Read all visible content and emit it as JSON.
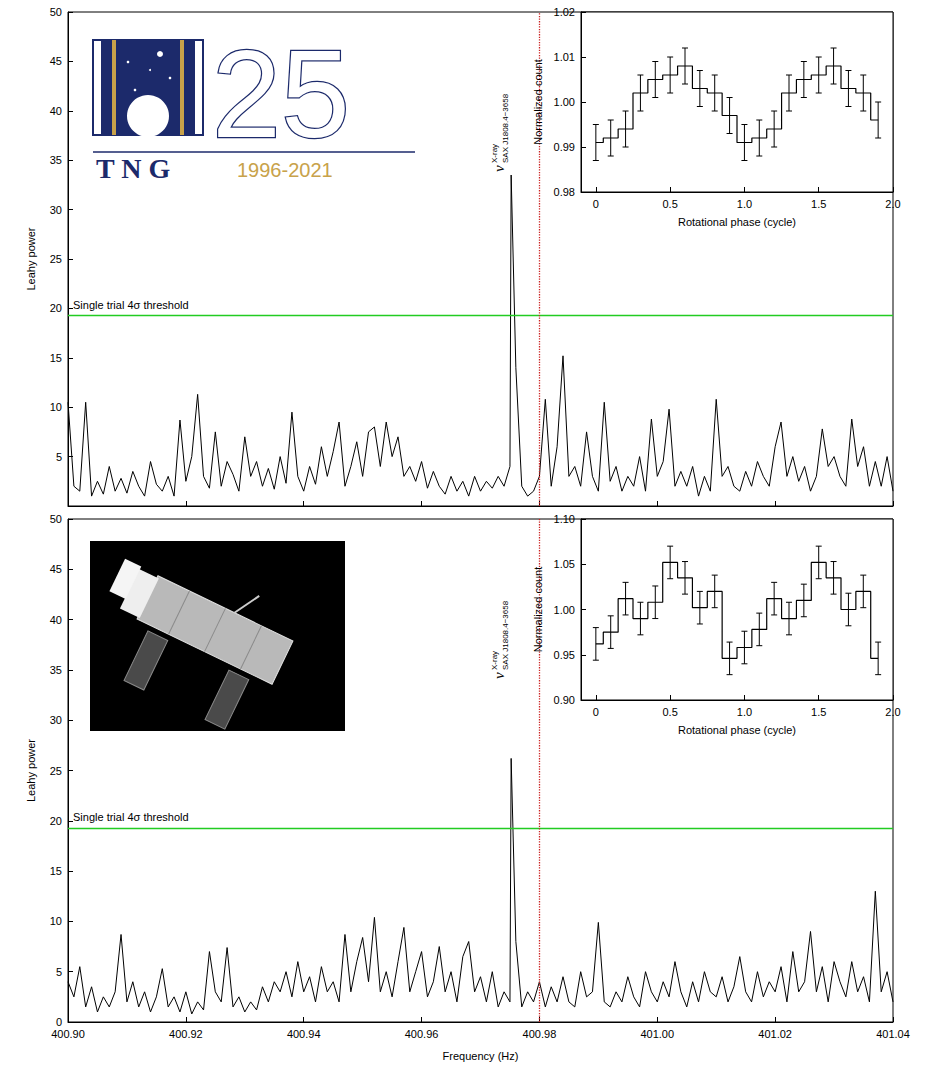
{
  "chart_data": [
    {
      "type": "line",
      "color": "#000000",
      "line_style": "solid",
      "grid": false,
      "tick_labels": "y",
      "y_label": "Leahy power",
      "xlim": [
        400.9,
        401.04
      ],
      "xticks": [
        {
          "value": 400.9,
          "label": "400.90"
        },
        400.92,
        400.94,
        400.96,
        400.98,
        {
          "value": 401,
          "label": "401.00"
        },
        401.02,
        401.04
      ],
      "ylim": [
        0,
        50
      ],
      "yticks": [
        5,
        10,
        15,
        20,
        25,
        30,
        35,
        40,
        45,
        50
      ],
      "x": [
        400.9,
        400.901,
        400.902,
        400.903,
        400.904,
        400.905,
        400.906,
        400.907,
        400.908,
        400.909,
        400.91,
        400.911,
        400.912,
        400.913,
        400.914,
        400.915,
        400.916,
        400.917,
        400.918,
        400.919,
        400.92,
        400.921,
        400.922,
        400.923,
        400.924,
        400.925,
        400.926,
        400.927,
        400.928,
        400.929,
        400.93,
        400.931,
        400.932,
        400.933,
        400.934,
        400.935,
        400.936,
        400.937,
        400.938,
        400.939,
        400.94,
        400.941,
        400.942,
        400.943,
        400.944,
        400.945,
        400.946,
        400.947,
        400.948,
        400.949,
        400.95,
        400.951,
        400.952,
        400.953,
        400.954,
        400.955,
        400.956,
        400.957,
        400.958,
        400.959,
        400.96,
        400.961,
        400.962,
        400.963,
        400.964,
        400.965,
        400.966,
        400.967,
        400.968,
        400.969,
        400.97,
        400.971,
        400.972,
        400.973,
        400.974,
        400.975,
        400.9752,
        400.976,
        400.977,
        400.978,
        400.979,
        400.98,
        400.981,
        400.982,
        400.983,
        400.984,
        400.985,
        400.986,
        400.987,
        400.988,
        400.989,
        400.99,
        400.991,
        400.992,
        400.993,
        400.994,
        400.995,
        400.996,
        400.997,
        400.998,
        400.999,
        401,
        401.001,
        401.002,
        401.003,
        401.004,
        401.005,
        401.006,
        401.007,
        401.008,
        401.009,
        401.01,
        401.011,
        401.012,
        401.013,
        401.014,
        401.015,
        401.016,
        401.017,
        401.018,
        401.019,
        401.02,
        401.021,
        401.022,
        401.023,
        401.024,
        401.025,
        401.026,
        401.027,
        401.028,
        401.029,
        401.03,
        401.031,
        401.032,
        401.033,
        401.034,
        401.035,
        401.036,
        401.037,
        401.038,
        401.039,
        401.04
      ],
      "values": [
        10.5,
        2,
        1.5,
        10.5,
        1,
        2.5,
        1.2,
        4,
        1.5,
        2.8,
        1.3,
        3.5,
        2,
        1,
        4.5,
        2.2,
        1.5,
        3,
        1,
        8.7,
        2.5,
        5,
        11.3,
        3,
        1.8,
        7.5,
        2,
        4.5,
        3.2,
        1.5,
        7,
        3,
        4.5,
        2,
        3.8,
        1.7,
        5,
        2.3,
        9.5,
        3,
        1.5,
        4,
        2.2,
        6,
        3,
        5.5,
        8.5,
        2,
        4,
        6.5,
        3,
        7.5,
        8,
        4,
        8.5,
        5,
        7,
        3,
        4,
        2.5,
        4.5,
        1.8,
        3.5,
        2,
        1.2,
        3,
        1.5,
        2.5,
        1,
        3,
        1.5,
        2.5,
        1.8,
        3,
        2,
        4,
        33.5,
        14,
        2,
        1,
        1.5,
        3,
        10.8,
        2,
        6,
        15.2,
        3,
        4,
        2,
        7.5,
        3,
        1.5,
        10.5,
        2.5,
        4,
        1.5,
        3,
        2,
        5,
        1.5,
        8.8,
        3,
        4.5,
        9.8,
        2,
        3.5,
        2,
        4,
        1,
        3,
        1.5,
        10.8,
        3,
        4,
        2,
        1.5,
        3.5,
        2,
        4.5,
        3,
        2,
        6,
        8.5,
        3,
        5,
        2.5,
        4,
        1.5,
        3,
        7.8,
        4,
        5,
        3,
        2,
        8.8,
        4,
        6,
        2,
        4.5,
        2,
        5,
        1.5
      ],
      "threshold": {
        "value": 19.3,
        "label": "Single trial 4σ threshold",
        "color": "#22cc22"
      },
      "vertical_line": {
        "value": 400.9752,
        "color": "#cc2222",
        "symbol": "ν",
        "superscript": "X-ray",
        "subscript": "SAX J1808.4−3658"
      },
      "logo": {
        "number": "25",
        "letters": "T N G",
        "years": "1996-2021"
      },
      "inset": {
        "type": "line",
        "line_style": "steps",
        "color": "#000000",
        "grid": false,
        "x_label": "Rotational phase (cycle)",
        "y_label": "Normalized count",
        "xlim": [
          -0.1,
          2.0
        ],
        "xticks": [
          0,
          0.5,
          {
            "value": 1,
            "label": "1.0"
          },
          1.5,
          {
            "value": 2,
            "label": "2.0"
          }
        ],
        "ylim": [
          0.98,
          1.02
        ],
        "yticks": [
          0.98,
          0.99,
          {
            "value": 1,
            "label": "1.00"
          },
          1.01,
          1.02
        ],
        "x": [
          0,
          0.1,
          0.2,
          0.3,
          0.4,
          0.5,
          0.6,
          0.7,
          0.8,
          0.9,
          1,
          1.1,
          1.2,
          1.3,
          1.4,
          1.5,
          1.6,
          1.7,
          1.8,
          1.9
        ],
        "values": [
          0.991,
          0.992,
          0.994,
          1.002,
          1.005,
          1.006,
          1.008,
          1.003,
          1.002,
          0.997,
          0.991,
          0.992,
          0.994,
          1.002,
          1.005,
          1.006,
          1.008,
          1.003,
          1.002,
          0.996
        ],
        "errors": [
          0.004,
          0.004,
          0.004,
          0.004,
          0.004,
          0.004,
          0.004,
          0.004,
          0.004,
          0.004,
          0.004,
          0.004,
          0.004,
          0.004,
          0.004,
          0.004,
          0.004,
          0.004,
          0.004,
          0.004
        ]
      }
    },
    {
      "type": "line",
      "color": "#000000",
      "line_style": "solid",
      "grid": false,
      "x_label": "Frequency (Hz)",
      "y_label": "Leahy power",
      "xlim": [
        400.9,
        401.04
      ],
      "xticks": [
        {
          "value": 400.9,
          "label": "400.90"
        },
        400.92,
        400.94,
        400.96,
        400.98,
        {
          "value": 401,
          "label": "401.00"
        },
        401.02,
        401.04
      ],
      "ylim": [
        0,
        50
      ],
      "yticks": [
        0,
        5,
        10,
        15,
        20,
        25,
        30,
        35,
        40,
        45,
        50
      ],
      "x": [
        400.9,
        400.901,
        400.902,
        400.903,
        400.904,
        400.905,
        400.906,
        400.907,
        400.908,
        400.909,
        400.91,
        400.911,
        400.912,
        400.913,
        400.914,
        400.915,
        400.916,
        400.917,
        400.918,
        400.919,
        400.92,
        400.921,
        400.922,
        400.923,
        400.924,
        400.925,
        400.926,
        400.927,
        400.928,
        400.929,
        400.93,
        400.931,
        400.932,
        400.933,
        400.934,
        400.935,
        400.936,
        400.937,
        400.938,
        400.939,
        400.94,
        400.941,
        400.942,
        400.943,
        400.944,
        400.945,
        400.946,
        400.947,
        400.948,
        400.949,
        400.95,
        400.951,
        400.952,
        400.953,
        400.954,
        400.955,
        400.956,
        400.957,
        400.958,
        400.959,
        400.96,
        400.961,
        400.962,
        400.963,
        400.964,
        400.965,
        400.966,
        400.967,
        400.968,
        400.969,
        400.97,
        400.971,
        400.972,
        400.973,
        400.974,
        400.975,
        400.9752,
        400.976,
        400.977,
        400.978,
        400.979,
        400.98,
        400.981,
        400.982,
        400.983,
        400.984,
        400.985,
        400.986,
        400.987,
        400.988,
        400.989,
        400.99,
        400.991,
        400.992,
        400.993,
        400.994,
        400.995,
        400.996,
        400.997,
        400.998,
        400.999,
        401,
        401.001,
        401.002,
        401.003,
        401.004,
        401.005,
        401.006,
        401.007,
        401.008,
        401.009,
        401.01,
        401.011,
        401.012,
        401.013,
        401.014,
        401.015,
        401.016,
        401.017,
        401.018,
        401.019,
        401.02,
        401.021,
        401.022,
        401.023,
        401.024,
        401.025,
        401.026,
        401.027,
        401.028,
        401.029,
        401.03,
        401.031,
        401.032,
        401.033,
        401.034,
        401.035,
        401.036,
        401.037,
        401.038,
        401.039,
        401.04
      ],
      "values": [
        4,
        2.5,
        5.5,
        1.5,
        3.5,
        1,
        2.5,
        1.5,
        3,
        8.7,
        2,
        4,
        1.5,
        3,
        1,
        2.5,
        5.3,
        1.5,
        2.5,
        1,
        3,
        0.8,
        2,
        1.2,
        7,
        3,
        2,
        7.4,
        1.5,
        2.5,
        1,
        2,
        1.2,
        3.5,
        2,
        4,
        3,
        5,
        2.5,
        6,
        3,
        4.5,
        2,
        5.5,
        3,
        4,
        2,
        8.7,
        3,
        6,
        8.4,
        4,
        10.4,
        3,
        5,
        2.5,
        6,
        9.4,
        3,
        5,
        7,
        2.5,
        4,
        7.5,
        3,
        5,
        2,
        6.5,
        8,
        3,
        4.5,
        2,
        5,
        1.5,
        3,
        2,
        26.2,
        8,
        1.5,
        3,
        2,
        4,
        1.5,
        3.5,
        2,
        4.5,
        2,
        1.5,
        5,
        2.5,
        3,
        9.9,
        2,
        1.5,
        3,
        2,
        4.5,
        2.5,
        1.5,
        5,
        3,
        2,
        4,
        2.5,
        6,
        3,
        1.5,
        4,
        2,
        5,
        3,
        2.5,
        4.5,
        2,
        3.5,
        6.5,
        3,
        2,
        5,
        2.5,
        4,
        3,
        5.5,
        2,
        7,
        3,
        4,
        9,
        3,
        5.5,
        2,
        6,
        4,
        2.5,
        6,
        3,
        4.5,
        2,
        13,
        3,
        5,
        2
      ],
      "threshold": {
        "value": 19.3,
        "label": "Single trial 4σ threshold",
        "color": "#22cc22"
      },
      "vertical_line": {
        "value": 400.9752,
        "color": "#cc2222",
        "symbol": "ν",
        "superscript": "X-ray",
        "subscript": "SAX J1808.4−3658"
      },
      "inset": {
        "type": "line",
        "line_style": "steps",
        "color": "#000000",
        "grid": false,
        "x_label": "Rotational phase (cycle)",
        "y_label": "Normalized count",
        "xlim": [
          -0.1,
          2.0
        ],
        "xticks": [
          0,
          0.5,
          {
            "value": 1,
            "label": "1.0"
          },
          1.5,
          {
            "value": 2,
            "label": "2.0"
          }
        ],
        "ylim": [
          0.9,
          1.1
        ],
        "yticks": [
          {
            "value": 0.9,
            "label": "0.90"
          },
          0.95,
          {
            "value": 1,
            "label": "1.00"
          },
          1.05,
          {
            "value": 1.1,
            "label": "1.10"
          }
        ],
        "x": [
          0,
          0.1,
          0.2,
          0.3,
          0.4,
          0.5,
          0.6,
          0.7,
          0.8,
          0.9,
          1,
          1.1,
          1.2,
          1.3,
          1.4,
          1.5,
          1.6,
          1.7,
          1.8,
          1.9
        ],
        "values": [
          0.962,
          0.975,
          1.012,
          0.99,
          1.008,
          1.052,
          1.035,
          1.002,
          1.02,
          0.946,
          0.958,
          0.978,
          1.012,
          0.99,
          1.01,
          1.052,
          1.035,
          1.0,
          1.02,
          0.946
        ],
        "errors": [
          0.018,
          0.018,
          0.018,
          0.018,
          0.018,
          0.018,
          0.018,
          0.018,
          0.018,
          0.018,
          0.018,
          0.018,
          0.018,
          0.018,
          0.018,
          0.018,
          0.018,
          0.018,
          0.018,
          0.018
        ]
      }
    }
  ]
}
